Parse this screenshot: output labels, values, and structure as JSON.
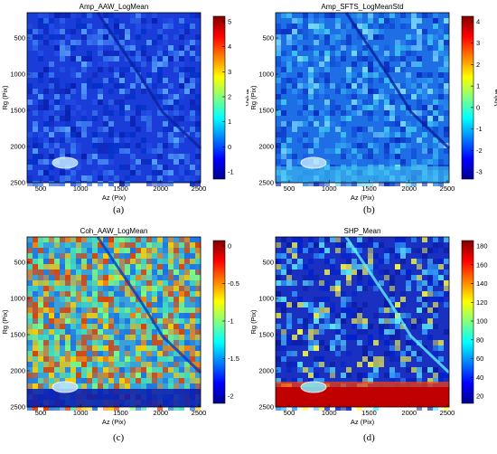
{
  "figures": [
    {
      "id": "a",
      "title": "Amp_AAW_LogMean",
      "caption": "(a)",
      "xlabel": "Az (Pix)",
      "ylabel": "Rg (Pix)",
      "colorbar_label": "Value",
      "x_ticks": [
        "500",
        "1000",
        "1500",
        "2000",
        "2500"
      ],
      "y_ticks": [
        "500",
        "1000",
        "1500",
        "2000",
        "2500"
      ],
      "colorbar_ticks": [
        "5",
        "4",
        "3",
        "2",
        "1",
        "0",
        "-1"
      ],
      "colormap": [
        "#00008f",
        "#0000ff",
        "#0080ff",
        "#00ffff",
        "#80ff80",
        "#ffff00",
        "#ff8000",
        "#ff0000",
        "#800000"
      ],
      "base_color": "#1a3cd8"
    },
    {
      "id": "b",
      "title": "Amp_SFTS_LogMeanStd",
      "caption": "(b)",
      "xlabel": "Az (Pix)",
      "ylabel": "Rg (Pix)",
      "colorbar_label": "Value",
      "x_ticks": [
        "500",
        "1000",
        "1500",
        "2000",
        "2500"
      ],
      "y_ticks": [
        "500",
        "1000",
        "1500",
        "2000",
        "2500"
      ],
      "colorbar_ticks": [
        "4",
        "3",
        "2",
        "1",
        "0",
        "-1",
        "-2",
        "-3"
      ],
      "colormap": [
        "#00008f",
        "#0000ff",
        "#0080ff",
        "#00ffff",
        "#80ff80",
        "#ffff00",
        "#ff8000",
        "#ff0000",
        "#800000"
      ],
      "base_color": "#1e6ee6"
    },
    {
      "id": "c",
      "title": "Coh_AAW_LogMean",
      "caption": "(c)",
      "xlabel": "Az (Pix)",
      "ylabel": "Rg (Pix)",
      "colorbar_label": "",
      "x_ticks": [
        "500",
        "1000",
        "1500",
        "2000",
        "2500"
      ],
      "y_ticks": [
        "500",
        "1000",
        "1500",
        "2000",
        "2500"
      ],
      "colorbar_ticks": [
        "0",
        "-0.5",
        "-1",
        "-1.5",
        "-2"
      ],
      "colormap": [
        "#00008f",
        "#0000ff",
        "#0080ff",
        "#00ffff",
        "#80ff80",
        "#ffff00",
        "#ff8000",
        "#ff0000",
        "#800000"
      ],
      "base_color": "#3aa0d8"
    },
    {
      "id": "d",
      "title": "SHP_Mean",
      "caption": "(d)",
      "xlabel": "Az (Pix)",
      "ylabel": "Rg (Pix)",
      "colorbar_label": "",
      "x_ticks": [
        "500",
        "1000",
        "1500",
        "2000",
        "2500"
      ],
      "y_ticks": [
        "500",
        "1000",
        "1500",
        "2000",
        "2500"
      ],
      "colorbar_ticks": [
        "180",
        "160",
        "140",
        "120",
        "100",
        "80",
        "60",
        "40",
        "20"
      ],
      "colormap": [
        "#00008f",
        "#0000ff",
        "#0080ff",
        "#00ffff",
        "#80ff80",
        "#ffff00",
        "#ff8000",
        "#ff0000",
        "#800000"
      ],
      "base_color": "#1a30c0"
    }
  ]
}
